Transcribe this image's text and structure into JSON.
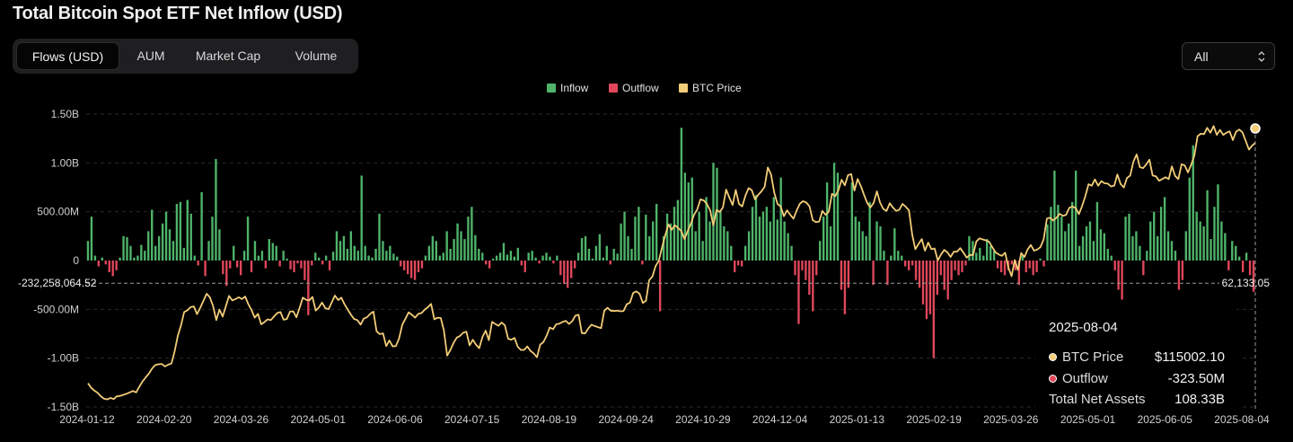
{
  "title": "Total Bitcoin Spot ETF Net Inflow (USD)",
  "tabs": [
    "Flows (USD)",
    "AUM",
    "Market Cap",
    "Volume"
  ],
  "active_tab": "Flows (USD)",
  "range_select": {
    "value": "All"
  },
  "colors": {
    "inflow": "#4fb46a",
    "outflow": "#e0475b",
    "price": "#f3cd78",
    "grid": "#2a2a2a",
    "text": "#d0d0d0"
  },
  "crosshair": {
    "left_label": "-232,258,064.52",
    "right_label": "62,133.05"
  },
  "tooltip": {
    "date": "2025-08-04",
    "rows": [
      {
        "label": "BTC Price",
        "value": "$115002.10",
        "color": "#f3cd78"
      },
      {
        "label": "Outflow",
        "value": "-323.50M",
        "color": "#e0475b"
      },
      {
        "label": "Total Net Assets",
        "value": "108.33B"
      }
    ]
  },
  "chart_data": {
    "type": "bar",
    "title": "Total Bitcoin Spot ETF Net Inflow (USD)",
    "legend": [
      "Inflow",
      "Outflow",
      "BTC Price"
    ],
    "legend_position": "top-center",
    "y_ticks": [
      "1.50B",
      "1.00B",
      "500.00M",
      "0",
      "-500.00M",
      "-1.00B",
      "-1.50B"
    ],
    "ylim": [
      -1.5,
      1.5
    ],
    "y_unit": "billion USD",
    "x_ticks": [
      "2024-01-12",
      "2024-02-20",
      "2024-03-26",
      "2024-05-01",
      "2024-06-06",
      "2024-07-15",
      "2024-08-19",
      "2024-09-24",
      "2024-10-29",
      "2024-12-04",
      "2025-01-13",
      "2025-02-19",
      "2025-03-26",
      "2025-05-01",
      "2025-06-05",
      "2025-08-04"
    ],
    "price_range": [
      40000,
      125000
    ],
    "flows_billion_usd": [
      0.2,
      0.45,
      0.05,
      -0.06,
      0.03,
      -0.04,
      -0.12,
      -0.16,
      -0.1,
      0.03,
      0.25,
      0.24,
      0.15,
      0.03,
      0.05,
      0.16,
      0.1,
      0.3,
      0.52,
      0.15,
      0.25,
      0.38,
      0.5,
      0.32,
      0.2,
      0.58,
      0.6,
      0.13,
      0.62,
      0.48,
      0.05,
      -0.05,
      0.7,
      -0.16,
      0.2,
      0.45,
      1.04,
      0.32,
      -0.14,
      -0.26,
      -0.08,
      0.15,
      -0.07,
      -0.15,
      0.1,
      0.45,
      -0.12,
      0.2,
      0.05,
      0.1,
      -0.08,
      0.22,
      0.18,
      0.15,
      -0.06,
      0.1,
      0.02,
      -0.09,
      -0.12,
      -0.03,
      -0.08,
      -0.2,
      -0.56,
      -0.05,
      0.08,
      0.03,
      -0.04,
      0.05,
      -0.1,
      0.09,
      0.3,
      0.2,
      0.25,
      0.12,
      0.3,
      0.15,
      0.1,
      0.87,
      0.15,
      0.05,
      0.03,
      0.12,
      0.48,
      0.2,
      0.1,
      0.15,
      0.07,
      0.04,
      -0.06,
      -0.1,
      -0.14,
      -0.18,
      -0.2,
      -0.12,
      -0.08,
      0.05,
      0.15,
      0.25,
      0.2,
      0.05,
      0.08,
      0.3,
      0.12,
      0.22,
      0.38,
      0.3,
      0.22,
      0.45,
      0.55,
      0.26,
      0.12,
      0.08,
      -0.04,
      -0.08,
      0.02,
      0.05,
      0.08,
      0.18,
      0.06,
      0.1,
      0.04,
      0.13,
      -0.05,
      -0.12,
      0.08,
      0.1,
      0.03,
      -0.03,
      0.05,
      0.08,
      0.04,
      -0.03,
      0.05,
      -0.15,
      -0.24,
      -0.28,
      -0.18,
      -0.08,
      0.08,
      0.23,
      0.25,
      0.12,
      0.02,
      0.15,
      0.27,
      0.03,
      0.15,
      -0.04,
      0.12,
      0.07,
      0.38,
      0.5,
      0.25,
      0.12,
      0.45,
      0.55,
      -0.04,
      0.47,
      0.25,
      0.4,
      0.58,
      -0.52,
      0.25,
      0.48,
      0.38,
      0.55,
      0.62,
      1.36,
      0.9,
      0.8,
      0.85,
      0.3,
      0.5,
      0.2,
      0.65,
      0.4,
      1.0,
      0.95,
      0.5,
      0.35,
      0.3,
      0.15,
      -0.12,
      -0.05,
      -0.06,
      0.15,
      0.3,
      0.55,
      0.67,
      0.45,
      0.5,
      0.55,
      0.4,
      0.65,
      0.42,
      0.85,
      0.4,
      0.28,
      0.15,
      -0.15,
      -0.65,
      -0.1,
      -0.2,
      -0.35,
      -0.52,
      -0.15,
      0.2,
      0.45,
      0.8,
      0.35,
      1.0,
      0.9,
      -0.3,
      -0.55,
      -0.28,
      0.8,
      0.45,
      0.4,
      0.3,
      0.25,
      0.6,
      -0.25,
      0.4,
      0.35,
      0.1,
      -0.25,
      0.05,
      0.33,
      0.1,
      0.05,
      -0.06,
      -0.1,
      -0.05,
      -0.2,
      -0.28,
      -0.45,
      -0.6,
      -0.55,
      -1.0,
      -0.35,
      -0.15,
      -0.3,
      -0.4,
      -0.2,
      -0.1,
      -0.15,
      -0.12,
      -0.05,
      0.25,
      0.2,
      0.08,
      0.13,
      0.05,
      0.22,
      0.15,
      0.1,
      -0.08,
      -0.12,
      -0.15,
      -0.1,
      -0.04,
      -0.1,
      -0.25,
      0.05,
      -0.12,
      -0.08,
      -0.15,
      -0.12,
      0.02,
      -0.06,
      0.37,
      0.55,
      0.92,
      0.57,
      0.45,
      0.3,
      0.38,
      0.6,
      0.92,
      0.15,
      0.25,
      0.35,
      0.4,
      0.2,
      0.6,
      0.32,
      0.28,
      0.12,
      0.05,
      -0.1,
      -0.3,
      -0.4,
      0.45,
      0.48,
      0.25,
      0.3,
      0.15,
      -0.15,
      0.1,
      0.4,
      0.5,
      0.25,
      0.55,
      0.65,
      0.3,
      0.2,
      0.1,
      -0.3,
      -0.2,
      0.3,
      0.85,
      1.18,
      0.5,
      0.4,
      0.35,
      0.72,
      0.22,
      0.55,
      0.78,
      0.4,
      0.28,
      -0.1,
      0.2,
      0.15,
      0.04,
      -0.12,
      0.08,
      -0.15,
      -0.32
    ],
    "btc_price_usd": [
      46500,
      45200,
      44400,
      43800,
      42800,
      42100,
      41900,
      42300,
      42000,
      42800,
      42900,
      43200,
      43500,
      43900,
      44300,
      43900,
      45500,
      47000,
      48200,
      49300,
      50700,
      51700,
      51900,
      52000,
      51300,
      51800,
      52100,
      55500,
      60000,
      63000,
      66800,
      67300,
      68200,
      68400,
      66200,
      68000,
      70000,
      72000,
      71000,
      68500,
      64500,
      67500,
      65500,
      68500,
      71400,
      70100,
      70500,
      71000,
      70500,
      71200,
      69000,
      67400,
      65200,
      66300,
      63300,
      63900,
      64700,
      64500,
      65500,
      66500,
      66800,
      64600,
      64800,
      66900,
      67000,
      65300,
      68000,
      70900,
      70300,
      70100,
      71100,
      67200,
      68100,
      69500,
      67900,
      67600,
      69500,
      71500,
      70200,
      70900,
      69000,
      67500,
      66000,
      64800,
      64500,
      63200,
      64900,
      65300,
      66300,
      66900,
      61300,
      60500,
      60700,
      57100,
      58700,
      57000,
      57100,
      59200,
      63200,
      64900,
      66700,
      66000,
      65200,
      66300,
      66500,
      67500,
      68200,
      69100,
      64700,
      65200,
      65100,
      61500,
      54400,
      56000,
      58000,
      59500,
      60000,
      60900,
      61200,
      57300,
      58900,
      57500,
      56500,
      59700,
      61500,
      58800,
      64000,
      63400,
      62900,
      63800,
      63000,
      59200,
      58900,
      59400,
      56900,
      56000,
      56000,
      57000,
      55700,
      55000,
      53900,
      57500,
      58200,
      60000,
      62400,
      61900,
      63300,
      63500,
      64000,
      64300,
      63400,
      64200,
      65800,
      66000,
      60800,
      60700,
      62100,
      63200,
      62800,
      62500,
      62200,
      67200,
      68000,
      67200,
      67100,
      67200,
      67000,
      67100,
      69000,
      69500,
      72200,
      72700,
      72000,
      69400,
      70000,
      75900,
      76900,
      79900,
      81400,
      85200,
      88700,
      91800,
      90200,
      91500,
      90800,
      89900,
      87600,
      89900,
      92000,
      94500,
      96100,
      98900,
      98600,
      97600,
      95800,
      91500,
      95900,
      95300,
      96600,
      101700,
      99400,
      97300,
      101600,
      97600,
      96900,
      99900,
      102100,
      101500,
      98900,
      100200,
      101200,
      102500,
      108000,
      106000,
      100800,
      97600,
      96900,
      94100,
      95800,
      94500,
      93400,
      95800,
      97700,
      98400,
      98000,
      96900,
      93000,
      92400,
      92600,
      95600,
      94500,
      95400,
      100500,
      99800,
      101500,
      104500,
      102900,
      105800,
      106100,
      101400,
      104700,
      102700,
      100200,
      97800,
      96600,
      97900,
      101200,
      98000,
      96200,
      95600,
      97800,
      96600,
      95600,
      96000,
      97600,
      96800,
      95800,
      88900,
      84700,
      86200,
      87600,
      84300,
      86600,
      84700,
      84900,
      81500,
      83200,
      84500,
      83800,
      82500,
      84000,
      84000,
      85000,
      83700,
      82300,
      83100,
      83000,
      86900,
      87800,
      87500,
      87200,
      86800,
      85300,
      83800,
      83200,
      82800,
      83700,
      79500,
      77000,
      81600,
      78800,
      83600,
      82500,
      84600,
      85900,
      84300,
      84600,
      85300,
      87500,
      93400,
      93700,
      92900,
      93700,
      94800,
      94200,
      94500,
      96500,
      96900,
      96400,
      94700,
      97000,
      99800,
      103200,
      102800,
      104600,
      102800,
      104100,
      103500,
      103400,
      102600,
      102800,
      106000,
      103300,
      102300,
      105000,
      105700,
      109700,
      111700,
      108100,
      107800,
      108900,
      110200,
      105700,
      105500,
      104200,
      104700,
      105200,
      104700,
      108300,
      105600,
      104700,
      108900,
      108600,
      106600,
      108800,
      111300,
      116900,
      117600,
      117500,
      119300,
      117900,
      119800,
      117300,
      118700,
      117300,
      117900,
      118300,
      115800,
      118200,
      118800,
      118000,
      115600,
      113100,
      114200,
      115000
    ]
  }
}
